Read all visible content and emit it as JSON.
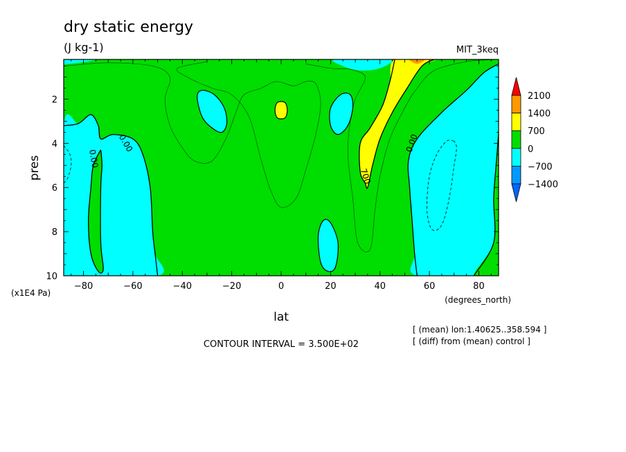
{
  "chart_data": {
    "type": "heatmap",
    "title": "dry static energy",
    "units": "(J kg-1)",
    "dataset": "MIT_3keq",
    "xlabel": "lat",
    "xunits": "(degrees_north)",
    "ylabel": "pres",
    "yunits": "(x1E4 Pa)",
    "xlim": [
      -88,
      88
    ],
    "ylim": [
      10,
      0.2
    ],
    "xticks": [
      -80,
      -60,
      -40,
      -20,
      0,
      20,
      40,
      60,
      80
    ],
    "yticks": [
      2,
      4,
      6,
      8,
      10
    ],
    "footer": "CONTOUR INTERVAL = 3.500E+02",
    "notes": [
      "[ (mean) lon:1.40625..358.594 ]",
      "[ (diff) from (mean) control ]"
    ],
    "levels": [
      {
        "range": [
          1400,
          2100
        ],
        "color": "#ff9900"
      },
      {
        "range": [
          700,
          1400
        ],
        "color": "#ffff00"
      },
      {
        "range": [
          0,
          700
        ],
        "color": "#00dd00"
      },
      {
        "range": [
          -700,
          0
        ],
        "color": "#00ffff"
      },
      {
        "range": [
          -1400,
          -700
        ],
        "color": "#0099ff"
      }
    ],
    "colorbar_labels": [
      "2100",
      "1400",
      "700",
      "0",
      "-700",
      "-1400"
    ],
    "colorbar_over": "#ff0000",
    "colorbar_under": "#0066ff",
    "background_level_color": "#00dd00",
    "regions": [
      {
        "name": "sh-negative",
        "color": "#00ffff",
        "pts": [
          [
            -88,
            3.2
          ],
          [
            -82,
            3.1
          ],
          [
            -77,
            2.7
          ],
          [
            -74,
            3.2
          ],
          [
            -73,
            3.8
          ],
          [
            -68,
            3.6
          ],
          [
            -60,
            3.8
          ],
          [
            -56,
            4.5
          ],
          [
            -53,
            6
          ],
          [
            -52,
            8
          ],
          [
            -51,
            9
          ],
          [
            -50,
            10
          ],
          [
            -88,
            10
          ]
        ]
      },
      {
        "name": "sh-positive-tongue",
        "color": "#00dd00",
        "pts": [
          [
            -73,
            4.3
          ],
          [
            -76,
            5
          ],
          [
            -77,
            6
          ],
          [
            -78,
            7.5
          ],
          [
            -77,
            9
          ],
          [
            -74,
            9.8
          ],
          [
            -72,
            9.7
          ],
          [
            -73,
            8.5
          ],
          [
            -73,
            6
          ],
          [
            -72.5,
            5
          ]
        ]
      },
      {
        "name": "nh-negative",
        "color": "#00ffff",
        "pts": [
          [
            88,
            0.2
          ],
          [
            88,
            10
          ],
          [
            55,
            10
          ],
          [
            54,
            9
          ],
          [
            53,
            7.5
          ],
          [
            52,
            6
          ],
          [
            51.5,
            4.8
          ],
          [
            55,
            3.8
          ],
          [
            65,
            2.6
          ],
          [
            75,
            1.6
          ],
          [
            82,
            0.8
          ],
          [
            88,
            0.4
          ]
        ]
      },
      {
        "name": "nh-positive-lobe",
        "color": "#00dd00",
        "pts": [
          [
            88,
            3.6
          ],
          [
            88,
            10
          ],
          [
            78,
            10
          ],
          [
            86,
            8.5
          ],
          [
            86,
            6.5
          ],
          [
            87,
            5
          ]
        ]
      },
      {
        "name": "top-center-negative",
        "color": "#00ffff",
        "pts": [
          [
            22,
            0.2
          ],
          [
            44,
            0.2
          ],
          [
            40,
            0.6
          ],
          [
            32,
            0.7
          ],
          [
            25,
            0.5
          ]
        ]
      },
      {
        "name": "top-left-negative",
        "color": "#00ffff",
        "pts": [
          [
            -88,
            0.2
          ],
          [
            -75,
            0.2
          ],
          [
            -82,
            0.35
          ],
          [
            -88,
            0.4
          ]
        ]
      },
      {
        "name": "blob-left",
        "color": "#00ffff",
        "pts": [
          [
            -34,
            1.9
          ],
          [
            -32,
            1.6
          ],
          [
            -27,
            1.8
          ],
          [
            -23,
            2.4
          ],
          [
            -22,
            3.1
          ],
          [
            -24,
            3.5
          ],
          [
            -28,
            3.3
          ],
          [
            -32,
            2.8
          ]
        ]
      },
      {
        "name": "blob-right",
        "color": "#00ffff",
        "pts": [
          [
            20,
            2.4
          ],
          [
            24,
            1.8
          ],
          [
            28,
            1.8
          ],
          [
            29,
            2.4
          ],
          [
            27,
            3.2
          ],
          [
            23,
            3.6
          ],
          [
            20,
            3.2
          ]
        ]
      },
      {
        "name": "blob-lower",
        "color": "#00ffff",
        "pts": [
          [
            15,
            8.2
          ],
          [
            17,
            7.5
          ],
          [
            20,
            7.6
          ],
          [
            23,
            8.5
          ],
          [
            22,
            9.6
          ],
          [
            19,
            9.8
          ],
          [
            16,
            9.4
          ]
        ]
      },
      {
        "name": "upper-yellow",
        "color": "#ffff00",
        "pts": [
          [
            46,
            0.2
          ],
          [
            62,
            0.2
          ],
          [
            57,
            0.5
          ],
          [
            51,
            1.5
          ],
          [
            45,
            2.6
          ],
          [
            40,
            3.8
          ],
          [
            37,
            5
          ],
          [
            35,
            6
          ],
          [
            34,
            5.8
          ],
          [
            32,
            5.3
          ],
          [
            32,
            4.0
          ],
          [
            36,
            3.3
          ],
          [
            41,
            2.3
          ],
          [
            44,
            1.2
          ]
        ]
      },
      {
        "name": "orange-top",
        "color": "#ff9900",
        "pts": [
          [
            52,
            0.2
          ],
          [
            58,
            0.2
          ],
          [
            55,
            0.4
          ]
        ]
      },
      {
        "name": "center-yellow",
        "color": "#ffff00",
        "pts": [
          [
            -2.5,
            2.5
          ],
          [
            -1.5,
            2.15
          ],
          [
            1.5,
            2.15
          ],
          [
            2.5,
            2.5
          ],
          [
            1.5,
            2.85
          ],
          [
            -1.5,
            2.85
          ]
        ]
      }
    ],
    "contour_lines": [
      {
        "name": "zero-line-sh",
        "dashed": false,
        "pts": [
          [
            -88,
            3.2
          ],
          [
            -82,
            3.1
          ],
          [
            -77,
            2.7
          ],
          [
            -74,
            3.2
          ],
          [
            -73,
            3.8
          ],
          [
            -68,
            3.6
          ],
          [
            -60,
            3.8
          ],
          [
            -56,
            4.5
          ],
          [
            -53,
            6
          ],
          [
            -52,
            8
          ],
          [
            -51,
            9
          ],
          [
            -50,
            10
          ]
        ]
      },
      {
        "name": "zero-line-sh-tongue",
        "dashed": false,
        "pts": [
          [
            -73,
            4.3
          ],
          [
            -76,
            5
          ],
          [
            -77,
            6
          ],
          [
            -78,
            7.5
          ],
          [
            -77,
            9
          ],
          [
            -74,
            9.8
          ],
          [
            -72,
            9.7
          ],
          [
            -73,
            8.5
          ],
          [
            -73,
            6
          ],
          [
            -72.5,
            5
          ],
          [
            -73,
            4.3
          ]
        ]
      },
      {
        "name": "zero-line-nh",
        "dashed": false,
        "pts": [
          [
            88,
            0.4
          ],
          [
            82,
            0.8
          ],
          [
            75,
            1.6
          ],
          [
            65,
            2.6
          ],
          [
            55,
            3.8
          ],
          [
            51.5,
            4.8
          ],
          [
            52,
            6
          ],
          [
            53,
            7.5
          ],
          [
            54,
            9
          ],
          [
            55,
            10
          ]
        ]
      },
      {
        "name": "zero-line-nh-lobe",
        "dashed": false,
        "pts": [
          [
            88,
            3.6
          ],
          [
            87,
            5
          ],
          [
            86,
            6.5
          ],
          [
            86,
            8.5
          ],
          [
            78,
            10
          ]
        ]
      },
      {
        "name": "line-700",
        "dashed": false,
        "pts": [
          [
            46,
            0.2
          ],
          [
            44,
            1.2
          ],
          [
            41,
            2.3
          ],
          [
            36,
            3.3
          ],
          [
            32,
            4.0
          ],
          [
            32,
            5.3
          ],
          [
            34,
            5.8
          ],
          [
            35,
            6
          ],
          [
            37,
            5
          ],
          [
            40,
            3.8
          ],
          [
            45,
            2.6
          ],
          [
            51,
            1.5
          ],
          [
            57,
            0.5
          ],
          [
            62,
            0.2
          ]
        ]
      },
      {
        "name": "thin-350-left",
        "dashed": false,
        "pts": [
          [
            -88,
            0.5
          ],
          [
            -70,
            0.35
          ],
          [
            -52,
            0.5
          ],
          [
            -45,
            1.0
          ],
          [
            -47,
            2.0
          ],
          [
            -45,
            3.2
          ],
          [
            -40,
            4.2
          ],
          [
            -35,
            4.8
          ],
          [
            -28,
            4.8
          ],
          [
            -22,
            3.7
          ],
          [
            -18,
            2.5
          ],
          [
            -15,
            1.8
          ],
          [
            -8,
            1.5
          ],
          [
            -2,
            1.2
          ],
          [
            5,
            1.4
          ],
          [
            10,
            1.2
          ],
          [
            14,
            1.3
          ],
          [
            16,
            2.2
          ],
          [
            14,
            3.6
          ],
          [
            10,
            5.2
          ],
          [
            6,
            6.5
          ],
          [
            0,
            6.9
          ],
          [
            -4,
            6.2
          ],
          [
            -8,
            4.8
          ],
          [
            -13,
            2.8
          ],
          [
            -20,
            1.8
          ],
          [
            -28,
            1.5
          ],
          [
            -38,
            1.0
          ],
          [
            -42,
            0.6
          ],
          [
            -30,
            0.3
          ]
        ]
      },
      {
        "name": "thin-350-right",
        "dashed": false,
        "pts": [
          [
            10,
            0.4
          ],
          [
            20,
            0.6
          ],
          [
            28,
            0.65
          ],
          [
            34,
            1.0
          ],
          [
            30,
            2.0
          ],
          [
            28,
            3.0
          ],
          [
            27,
            4.5
          ],
          [
            29,
            6.5
          ],
          [
            31,
            8.5
          ],
          [
            36,
            8.8
          ],
          [
            38,
            7.0
          ],
          [
            40,
            5.5
          ],
          [
            44,
            3.8
          ],
          [
            50,
            2.4
          ],
          [
            55,
            1.5
          ],
          [
            62,
            0.7
          ],
          [
            75,
            0.3
          ],
          [
            88,
            0.2
          ]
        ]
      },
      {
        "name": "dashed-left",
        "dashed": true,
        "pts": [
          [
            -88,
            4.1
          ],
          [
            -85.5,
            4.5
          ],
          [
            -85,
            5.0
          ],
          [
            -86.5,
            5.6
          ],
          [
            -88,
            5.8
          ]
        ]
      },
      {
        "name": "dashed-right",
        "dashed": true,
        "pts": [
          [
            70,
            3.9
          ],
          [
            67,
            3.9
          ],
          [
            63,
            4.5
          ],
          [
            60,
            5.5
          ],
          [
            59,
            7.0
          ],
          [
            61,
            7.9
          ],
          [
            65,
            7.7
          ],
          [
            68,
            6.5
          ],
          [
            70,
            5.0
          ],
          [
            71,
            4.2
          ],
          [
            70,
            3.9
          ]
        ]
      }
    ],
    "contour_labels": [
      {
        "text": "0.00",
        "x": -76,
        "y": 4.7,
        "angle": 80
      },
      {
        "text": "0.00",
        "x": -63,
        "y": 4.0,
        "angle": 60
      },
      {
        "text": "0.00",
        "x": 53,
        "y": 4.0,
        "angle": -70
      },
      {
        "text": "700",
        "x": 34,
        "y": 5.5,
        "angle": 72
      }
    ]
  }
}
